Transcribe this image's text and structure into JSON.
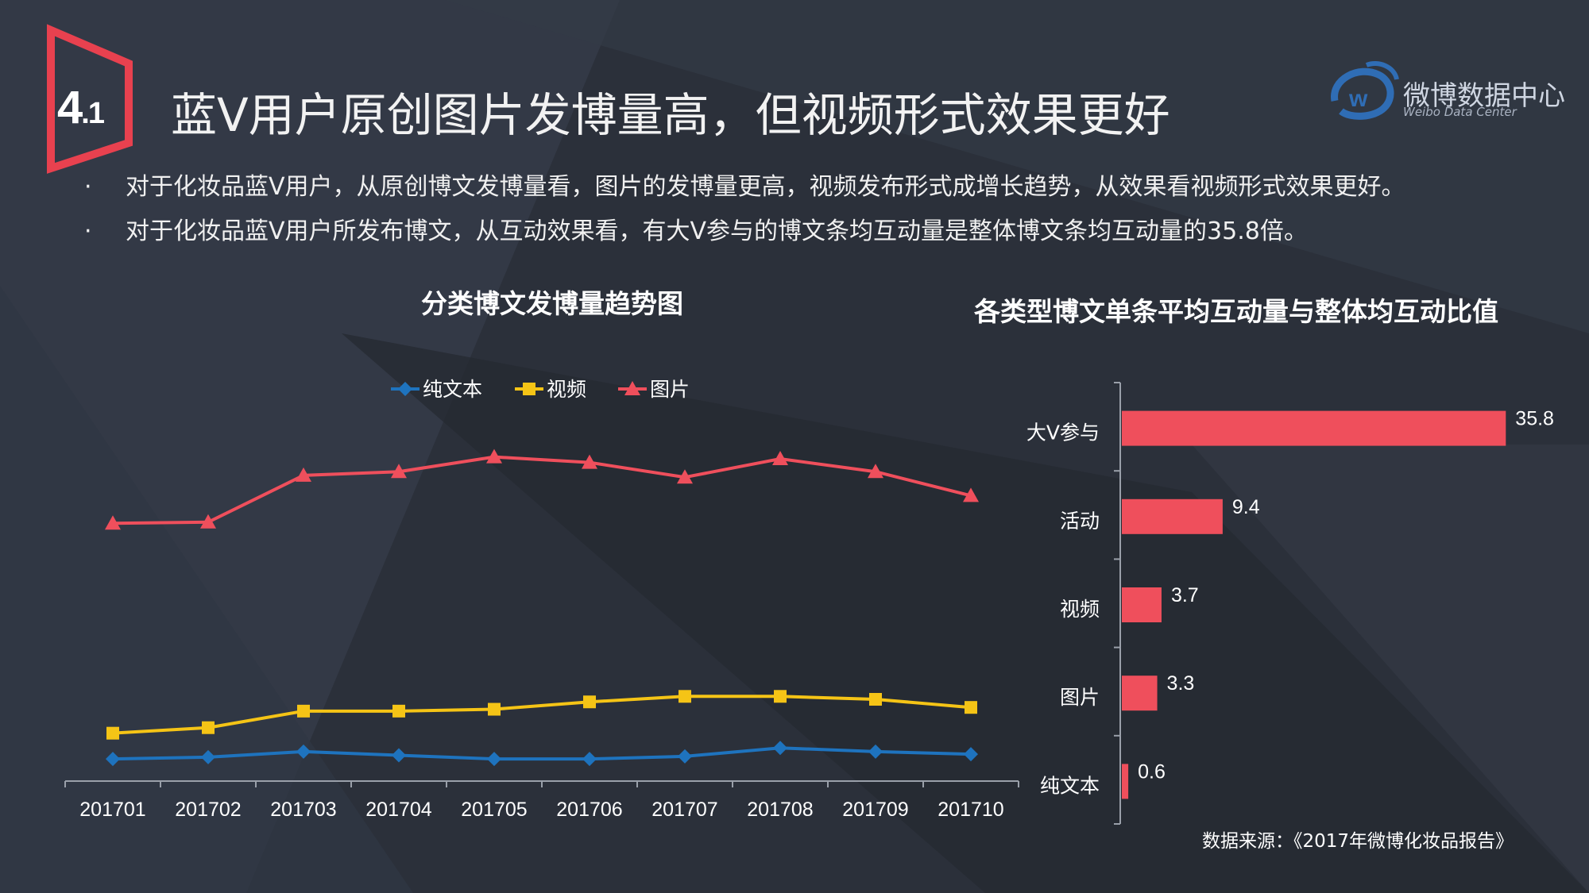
{
  "header": {
    "section_number": "4",
    "section_sub": ".1",
    "title": "蓝V用户原创图片发博量高，但视频形式效果更好",
    "logo_text": "微博数据中心",
    "logo_subtext": "Weibo Data Center",
    "accent_color": "#e8414f",
    "logo_color": "#2f6db5"
  },
  "bullets": [
    "对于化妆品蓝V用户，从原创博文发博量看，图片的发博量更高，视频发布形式成增长趋势，从效果看视频形式效果更好。",
    "对于化妆品蓝V用户所发布博文，从互动效果看，有大V参与的博文条均互动量是整体博文条均互动量的35.8倍。"
  ],
  "bullet_marker": "·",
  "source": "数据来源：《2017年微博化妆品报告》",
  "chart_data": [
    {
      "type": "line",
      "title": "分类博文发博量趋势图",
      "legend_position": "top",
      "x": [
        "201701",
        "201702",
        "201703",
        "201704",
        "201705",
        "201706",
        "201707",
        "201708",
        "201709",
        "201710"
      ],
      "ylim": [
        0,
        100
      ],
      "grid": false,
      "series": [
        {
          "name": "纯文本",
          "color": "#1e73be",
          "marker": "diamond",
          "values": [
            6,
            6.5,
            8,
            7,
            6,
            6,
            6.7,
            9,
            8,
            7.3
          ]
        },
        {
          "name": "视频",
          "color": "#f5c416",
          "marker": "square",
          "values": [
            13,
            14.5,
            19,
            19,
            19.5,
            21.5,
            23,
            23,
            22.2,
            20
          ]
        },
        {
          "name": "图片",
          "color": "#ef4f5c",
          "marker": "triangle",
          "values": [
            70,
            70.3,
            83,
            84,
            88,
            86.5,
            82.5,
            87.5,
            84,
            77.5
          ]
        }
      ]
    },
    {
      "type": "bar",
      "orientation": "horizontal",
      "title": "各类型博文单条平均互动量与整体均互动比值",
      "categories": [
        "大V参与",
        "活动",
        "视频",
        "图片",
        "纯文本"
      ],
      "values": [
        35.8,
        9.4,
        3.7,
        3.3,
        0.6
      ],
      "labels": [
        "35.8",
        "9.4",
        "3.7",
        "3.3",
        "0.6"
      ],
      "color": "#ef4f5c",
      "xlim": [
        0,
        36
      ]
    }
  ]
}
